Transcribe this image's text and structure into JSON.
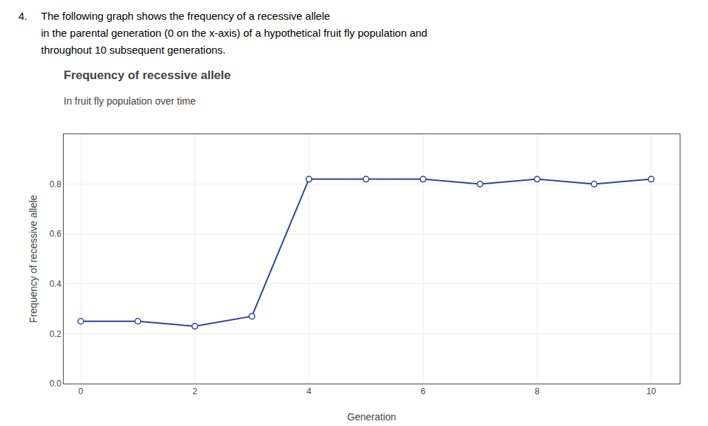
{
  "chart_data": {
    "type": "line",
    "title": "Frequency of recessive allele",
    "subtitle": "In fruit fly population over time",
    "annotations": [
      "4.",
      "The following graph shows the frequency of a recessive allele",
      "in the parental generation (0 on the x-axis) of a hypothetical fruit fly population and",
      "throughout 10 subsequent generations."
    ],
    "x_label": "Generation",
    "y_label": "Frequency of recessive allele",
    "x": [
      0,
      1,
      2,
      3,
      4,
      5,
      6,
      7,
      8,
      9,
      10
    ],
    "values": [
      0.25,
      0.25,
      0.23,
      0.27,
      0.82,
      0.82,
      0.82,
      0.8,
      0.82,
      0.8,
      0.82
    ],
    "color": "#2b3f9e",
    "marker": "circle",
    "xlim": [
      -0.3,
      10.5
    ],
    "xticks": [
      0,
      2,
      4,
      6,
      8,
      10
    ],
    "ylim": [
      0,
      1.0
    ],
    "yticks": [
      {
        "value": 0,
        "label": "0.0"
      },
      0.2,
      0.4,
      0.6,
      0.8
    ],
    "grid": true
  }
}
